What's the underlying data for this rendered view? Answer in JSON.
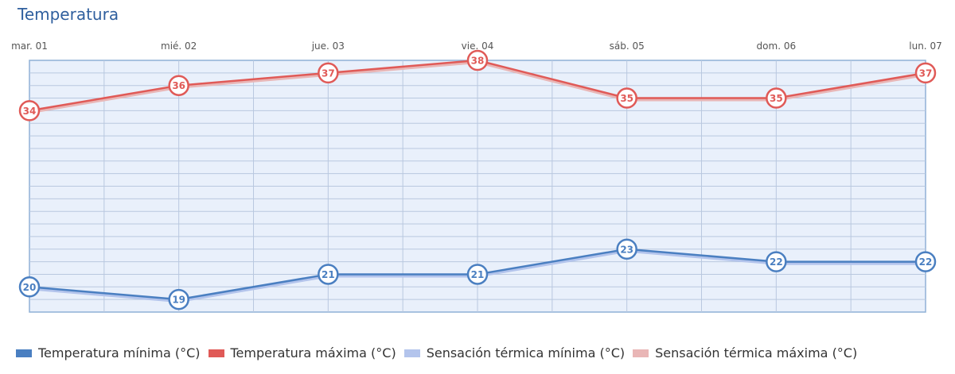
{
  "title": "Temperatura",
  "colors": {
    "min": "#4a7fc1",
    "max": "#e05a57",
    "feel_min": "#b3c4ec",
    "feel_max": "#e9b6b6",
    "plot_bg": "#e9f0fb",
    "grid": "#b9c8df",
    "border": "#8fb0d6"
  },
  "chart_data": {
    "type": "line",
    "categories": [
      "mar. 01",
      "mié. 02",
      "jue. 03",
      "vie. 04",
      "sáb. 05",
      "dom. 06",
      "lun. 07"
    ],
    "ylim": [
      18,
      38
    ],
    "grid": true,
    "legend_position": "bottom",
    "series": [
      {
        "name": "Temperatura mínima (°C)",
        "key": "min",
        "values": [
          20,
          19,
          21,
          21,
          23,
          22,
          22
        ]
      },
      {
        "name": "Temperatura máxima (°C)",
        "key": "max",
        "values": [
          34,
          36,
          37,
          38,
          35,
          35,
          37
        ]
      },
      {
        "name": "Sensación térmica mínima (°C)",
        "key": "feel_min",
        "values": [
          20,
          19,
          21,
          21,
          23,
          22,
          22
        ]
      },
      {
        "name": "Sensación térmica máxima (°C)",
        "key": "feel_max",
        "values": [
          34,
          36,
          37,
          38,
          35,
          35,
          37
        ]
      }
    ]
  }
}
